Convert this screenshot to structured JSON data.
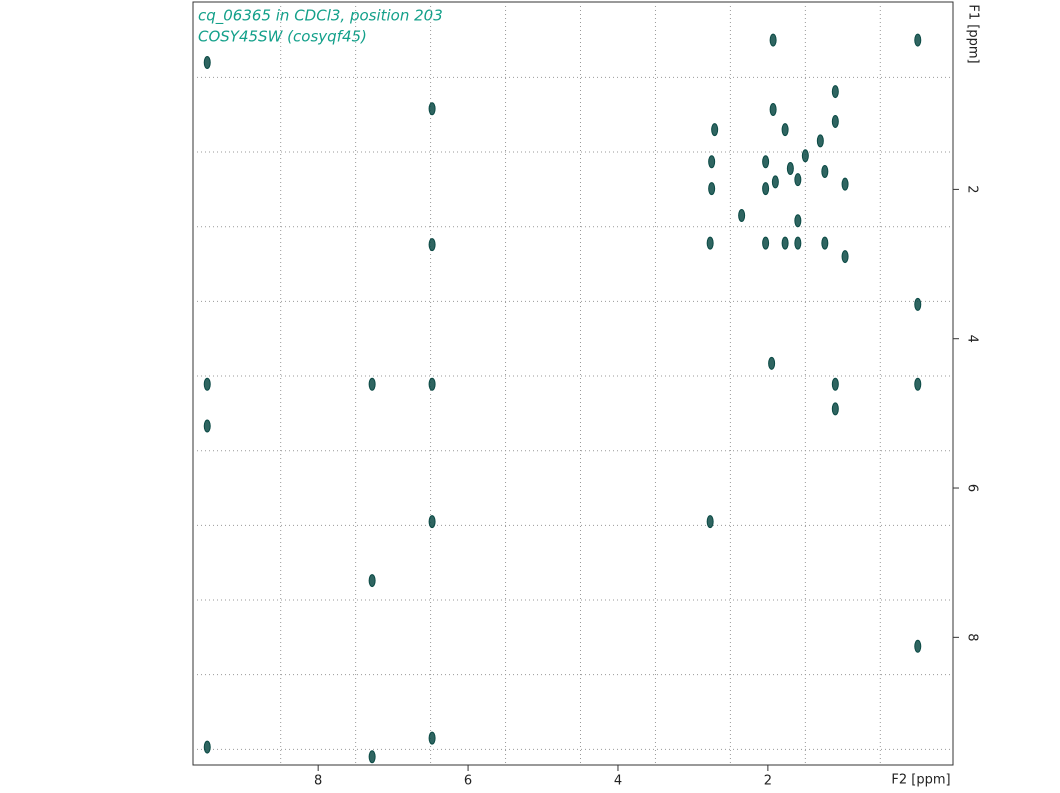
{
  "chart_data": {
    "type": "contour",
    "title": "cq_06365 in CDCl3, position 203",
    "subtitle": "COSY45SW (cosyqf45)",
    "xlabel": "F2 [ppm]",
    "ylabel": "F1 [ppm]",
    "xlim": [
      9.67,
      -0.47
    ],
    "ylim": [
      -0.51,
      9.71
    ],
    "xticks": [
      8,
      6,
      4,
      2
    ],
    "yticks": [
      2,
      4,
      6,
      8
    ],
    "xgrid": [
      8.5,
      7.5,
      6.5,
      5.5,
      4.5,
      3.5,
      2.5,
      1.5,
      0.5
    ],
    "ygrid": [
      0.5,
      1.5,
      2.5,
      3.5,
      4.5,
      5.5,
      6.5,
      7.5,
      8.5,
      9.5
    ],
    "grid": true,
    "color": "#0b4a45",
    "x": [
      0.0,
      1.93,
      9.48,
      6.48,
      2.71,
      1.77,
      1.93,
      2.75,
      2.75,
      2.03,
      2.03,
      1.24,
      0.97,
      1.6,
      1.1,
      1.1,
      1.3,
      1.5,
      1.7,
      1.9,
      2.77,
      2.03,
      1.77,
      1.6,
      1.24,
      0.97,
      6.48,
      0.0,
      1.95,
      9.48,
      7.28,
      6.48,
      1.1,
      0.0,
      1.1,
      9.48,
      6.48,
      2.77,
      7.28,
      0.0,
      6.48,
      7.28,
      9.48,
      2.35,
      1.6
    ],
    "y": [
      0.0,
      0.0,
      0.3,
      0.92,
      1.2,
      1.2,
      0.93,
      1.63,
      1.99,
      1.63,
      1.99,
      1.76,
      1.93,
      1.87,
      0.69,
      1.09,
      1.35,
      1.55,
      1.72,
      1.9,
      2.72,
      2.72,
      2.72,
      2.72,
      2.72,
      2.9,
      2.74,
      3.54,
      4.33,
      4.61,
      4.61,
      4.61,
      4.61,
      4.61,
      4.94,
      5.17,
      6.45,
      6.45,
      7.24,
      8.12,
      9.35,
      9.6,
      9.47,
      2.35,
      2.42
    ]
  }
}
